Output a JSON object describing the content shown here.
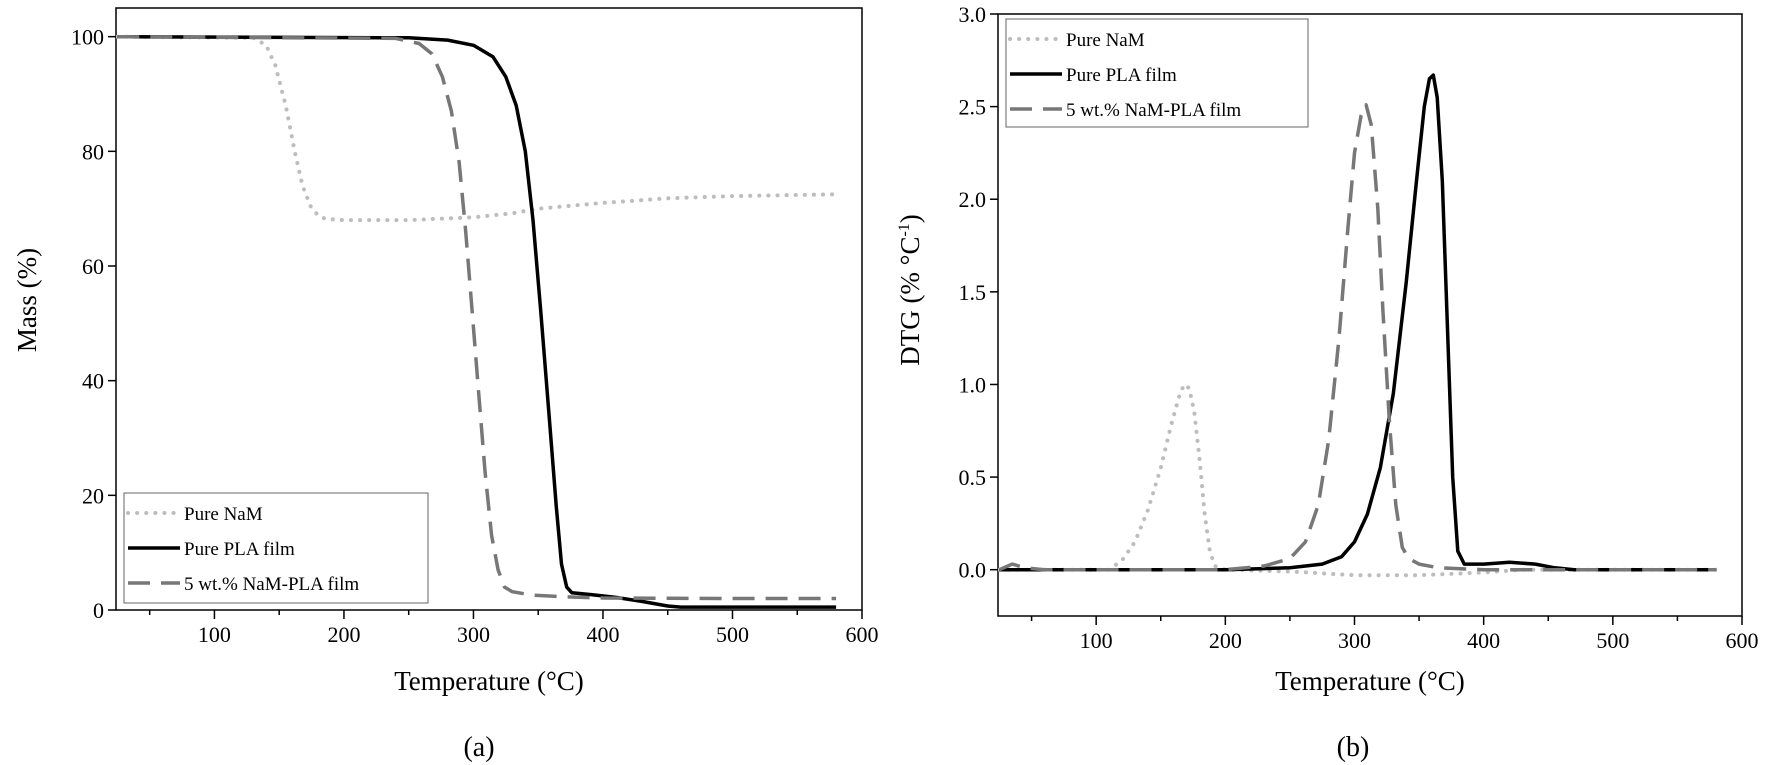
{
  "colors": {
    "pure_nam": "#bdbdbd",
    "pure_pla": "#000000",
    "nam_pla": "#777777"
  },
  "chart_data": [
    {
      "type": "line",
      "panel_label": "(a)",
      "xlabel": "Temperature (°C)",
      "ylabel": "Mass (%)",
      "xlim": [
        24,
        600
      ],
      "ylim": [
        0,
        105
      ],
      "xticks": [
        100,
        200,
        300,
        400,
        500,
        600
      ],
      "yticks": [
        0,
        20,
        40,
        60,
        80,
        100
      ],
      "legend_position": "bottom-left",
      "series": [
        {
          "name": "Pure NaM",
          "style": "dotted",
          "x": [
            25,
            130,
            140,
            147,
            155,
            162,
            168,
            174,
            180,
            186,
            200,
            250,
            300,
            330,
            350,
            400,
            450,
            500,
            580
          ],
          "y": [
            100,
            99.8,
            98.5,
            95,
            88,
            80,
            74,
            70.5,
            68.8,
            68.2,
            68,
            68,
            68.5,
            69.2,
            70,
            71,
            71.8,
            72.2,
            72.5
          ]
        },
        {
          "name": "Pure PLA film",
          "style": "solid",
          "x": [
            25,
            250,
            280,
            300,
            315,
            325,
            333,
            340,
            346,
            352,
            358,
            364,
            368,
            372,
            376,
            390,
            410,
            430,
            450,
            460,
            580
          ],
          "y": [
            100,
            99.8,
            99.4,
            98.5,
            96.5,
            93,
            88,
            80,
            68,
            52,
            35,
            18,
            8,
            4,
            3,
            2.7,
            2.2,
            1.5,
            0.7,
            0.5,
            0.5
          ]
        },
        {
          "name": "5 wt.% NaM-PLA film",
          "style": "dashed",
          "x": [
            25,
            240,
            258,
            268,
            276,
            283,
            289,
            294,
            299,
            304,
            309,
            314,
            319,
            324,
            330,
            345,
            370,
            400,
            500,
            580
          ],
          "y": [
            100,
            99.7,
            98.8,
            97,
            93,
            87,
            78,
            66,
            52,
            38,
            24,
            13,
            7,
            4,
            3.2,
            2.6,
            2.3,
            2.1,
            2,
            2
          ]
        }
      ]
    },
    {
      "type": "line",
      "panel_label": "(b)",
      "xlabel": "Temperature (°C)",
      "ylabel_main": "DTG (% °C",
      "ylabel_sup": "-1",
      "ylabel_end": ")",
      "xlim": [
        24,
        600
      ],
      "ylim": [
        -0.25,
        3.0
      ],
      "xticks": [
        100,
        200,
        300,
        400,
        500,
        600
      ],
      "yticks": [
        0.0,
        0.5,
        1.0,
        1.5,
        2.0,
        2.5,
        3.0
      ],
      "ytick_labels": [
        "0.0",
        "0.5",
        "1.0",
        "1.5",
        "2.0",
        "2.5",
        "3.0"
      ],
      "legend_position": "top-left",
      "series": [
        {
          "name": "Pure NaM",
          "style": "dotted",
          "x": [
            25,
            110,
            120,
            130,
            140,
            150,
            158,
            164,
            168,
            172,
            176,
            180,
            184,
            188,
            192,
            200,
            250,
            300,
            350,
            400,
            430,
            580
          ],
          "y": [
            0,
            0,
            0.05,
            0.15,
            0.32,
            0.55,
            0.78,
            0.93,
            1.0,
            0.98,
            0.85,
            0.6,
            0.3,
            0.1,
            0.02,
            0,
            -0.01,
            -0.03,
            -0.03,
            -0.015,
            0,
            0
          ]
        },
        {
          "name": "Pure PLA film",
          "style": "solid",
          "x": [
            25,
            200,
            250,
            275,
            290,
            300,
            310,
            320,
            330,
            340,
            348,
            354,
            358,
            361,
            364,
            368,
            372,
            376,
            380,
            385,
            400,
            420,
            440,
            455,
            470,
            580
          ],
          "y": [
            0,
            0,
            0.01,
            0.03,
            0.07,
            0.15,
            0.3,
            0.55,
            0.95,
            1.55,
            2.1,
            2.5,
            2.65,
            2.67,
            2.55,
            2.1,
            1.3,
            0.5,
            0.1,
            0.03,
            0.03,
            0.04,
            0.03,
            0.01,
            0,
            0
          ]
        },
        {
          "name": "5 wt.% NaM-PLA film",
          "style": "dashed",
          "x": [
            25,
            35,
            45,
            60,
            200,
            230,
            250,
            262,
            272,
            280,
            288,
            295,
            300,
            305,
            309,
            313,
            318,
            322,
            327,
            332,
            337,
            342,
            350,
            365,
            400,
            580
          ],
          "y": [
            0,
            0.03,
            0.01,
            0,
            0,
            0.02,
            0.06,
            0.15,
            0.35,
            0.7,
            1.25,
            1.85,
            2.25,
            2.45,
            2.51,
            2.4,
            1.95,
            1.4,
            0.8,
            0.35,
            0.12,
            0.06,
            0.03,
            0.01,
            0,
            0
          ]
        }
      ]
    }
  ]
}
